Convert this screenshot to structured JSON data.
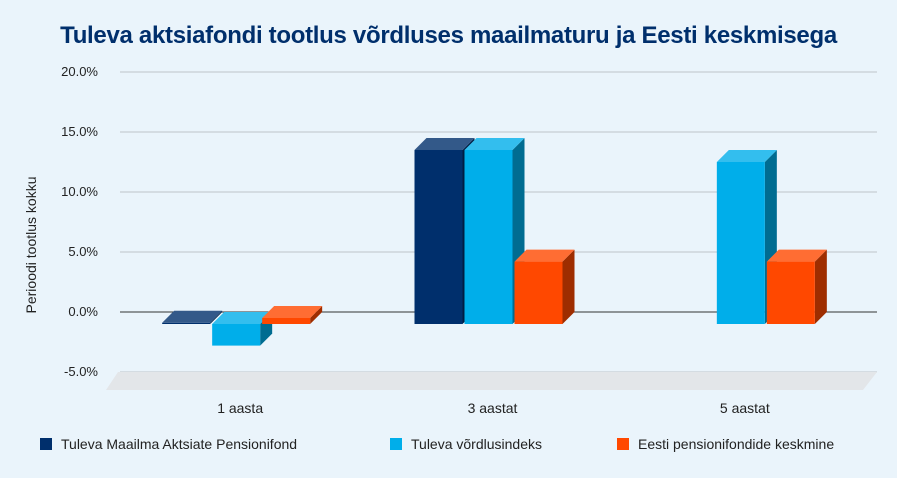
{
  "chart_data": {
    "type": "bar",
    "title": "Tuleva aktsiafondi tootlus võrdluses maailmaturu ja Eesti keskmisega",
    "xlabel": "",
    "ylabel": "Perioodi tootlus kokku",
    "categories": [
      "1 aasta",
      "3 aastat",
      "5 aastat"
    ],
    "y_ticks": [
      "20.0%",
      "15.0%",
      "10.0%",
      "5.0%",
      "0.0%",
      "-5.0%"
    ],
    "ylim": [
      -5,
      20
    ],
    "grid": true,
    "legend_position": "bottom",
    "series": [
      {
        "name": "Tuleva Maailma Aktsiate Pensionifond",
        "color": "#002f6c",
        "values": [
          0.1,
          14.5,
          null
        ]
      },
      {
        "name": "Tuleva võrdlusindeks",
        "color": "#00aeea",
        "values": [
          -1.8,
          14.5,
          13.5
        ]
      },
      {
        "name": "Eesti pensionifondide keskmine",
        "color": "#ff4800",
        "values": [
          0.5,
          5.2,
          5.2
        ]
      }
    ]
  }
}
